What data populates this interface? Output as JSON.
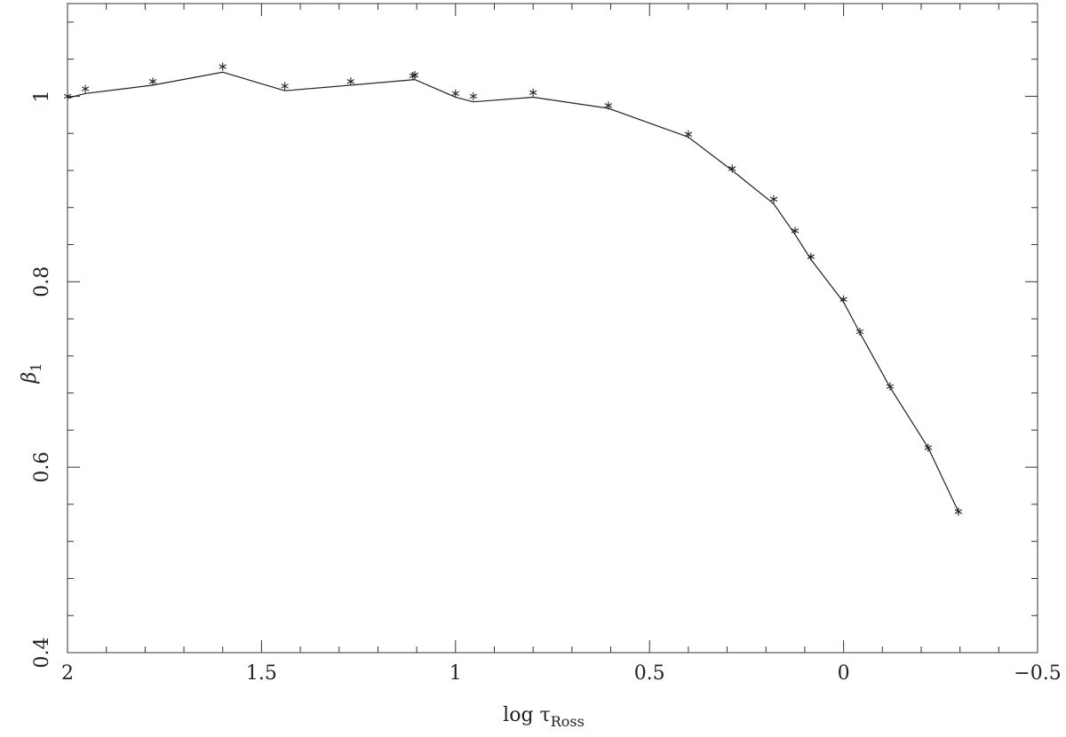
{
  "chart_data": {
    "type": "scatter-line",
    "xlabel": "log τ",
    "xlabel_sub": "Ross",
    "ylabel": "β",
    "ylabel_sub": "1",
    "xlim": [
      2,
      -0.5
    ],
    "ylim": [
      0.4,
      1.1
    ],
    "xticks": [
      2,
      1.5,
      1,
      0.5,
      0,
      {
        "value": -0.5,
        "label": "−0.5"
      }
    ],
    "xticks_minor": [
      1.9,
      1.8,
      1.7,
      1.6,
      1.4,
      1.3,
      1.2,
      1.1,
      0.9,
      0.8,
      0.7,
      0.6,
      0.4,
      0.3,
      0.2,
      0.1,
      -0.1,
      -0.2,
      -0.3,
      -0.4
    ],
    "yticks": [
      0.4,
      0.6,
      0.8,
      1
    ],
    "yticks_minor": [
      0.44,
      0.48,
      0.52,
      0.56,
      0.64,
      0.68,
      0.72,
      0.76,
      0.84,
      0.88,
      0.92,
      0.96,
      1.04,
      1.08
    ],
    "series": [
      {
        "kind": "points",
        "color": "#222",
        "x": [
          2.0,
          1.954,
          1.78,
          1.6,
          1.44,
          1.27,
          1.11,
          1.105,
          1.0,
          0.954,
          0.8,
          0.606,
          0.4,
          0.287,
          0.18,
          0.125,
          0.084,
          0.0,
          -0.042,
          -0.12,
          -0.218,
          -0.296
        ],
        "values": [
          1.0,
          1.008,
          1.016,
          1.032,
          1.011,
          1.016,
          1.022,
          1.023,
          1.003,
          1.0,
          1.004,
          0.99,
          0.959,
          0.922,
          0.889,
          0.855,
          0.827,
          0.781,
          0.746,
          0.687,
          0.621,
          0.552
        ]
      },
      {
        "kind": "line",
        "color": "#222",
        "x": [
          2.0,
          1.954,
          1.78,
          1.6,
          1.44,
          1.27,
          1.105,
          1.0,
          0.954,
          0.8,
          0.606,
          0.4,
          0.287,
          0.18,
          0.125,
          0.084,
          0.0,
          -0.042,
          -0.12,
          -0.218,
          -0.296
        ],
        "values": [
          0.998,
          1.003,
          1.012,
          1.026,
          1.006,
          1.012,
          1.018,
          0.999,
          0.994,
          0.999,
          0.987,
          0.956,
          0.92,
          0.884,
          0.851,
          0.824,
          0.778,
          0.745,
          0.686,
          0.621,
          0.552
        ]
      }
    ]
  }
}
